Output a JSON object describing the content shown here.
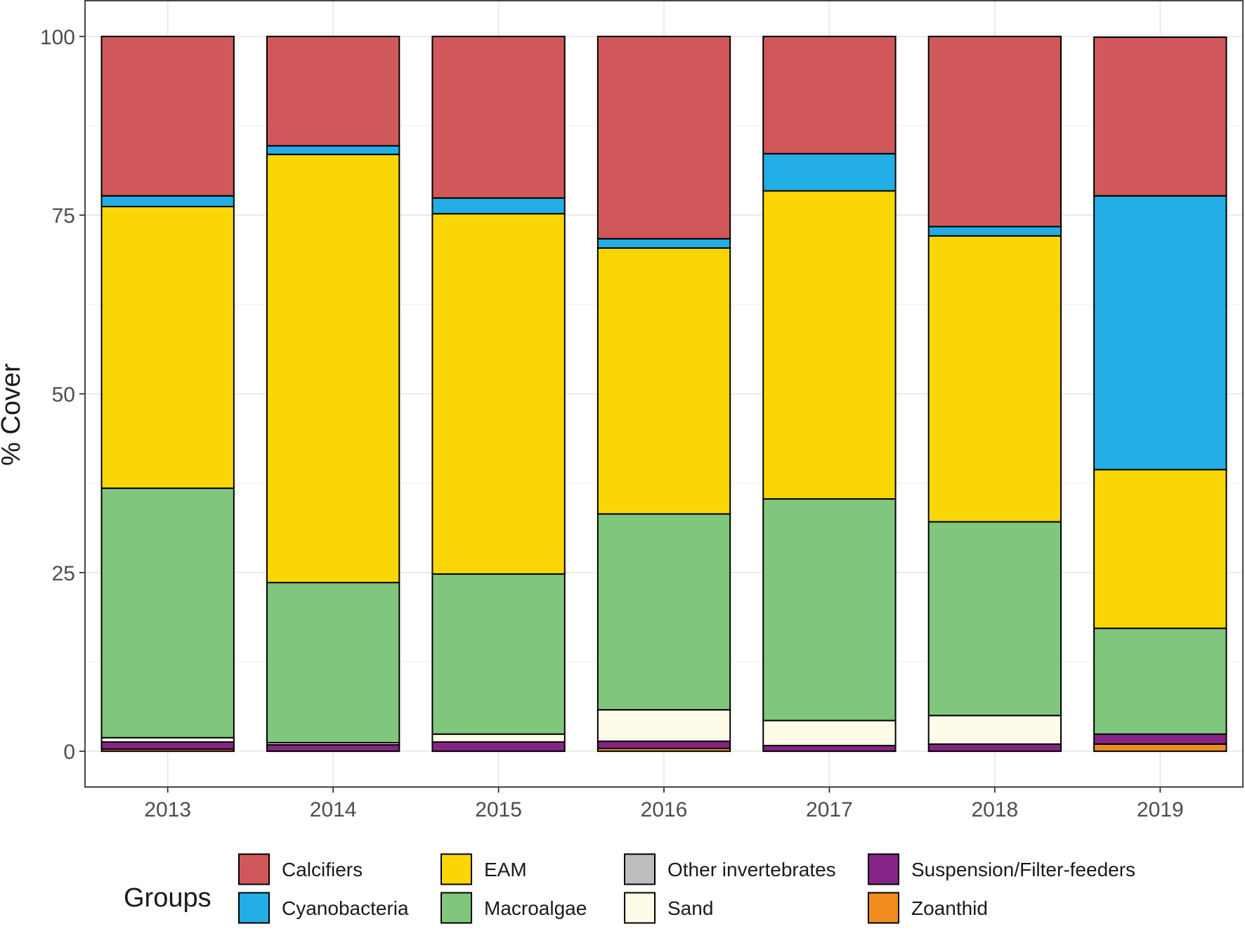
{
  "chart_data": {
    "type": "bar",
    "stacked": true,
    "title": "",
    "xlabel": "",
    "ylabel": "% Cover",
    "ylim": [
      -5,
      105
    ],
    "yticks": [
      0,
      25,
      50,
      75,
      100
    ],
    "grid": true,
    "legend_title": "Groups",
    "legend_position": "bottom",
    "categories": [
      "2013",
      "2014",
      "2015",
      "2016",
      "2017",
      "2018",
      "2019"
    ],
    "stack_order": [
      "Zoanthid",
      "Suspension/Filter-feeders",
      "Other invertebrates",
      "Sand",
      "Macroalgae",
      "EAM",
      "Cyanobacteria",
      "Calcifiers"
    ],
    "legend_order": [
      "Calcifiers",
      "Cyanobacteria",
      "EAM",
      "Macroalgae",
      "Other invertebrates",
      "Sand",
      "Suspension/Filter-feeders",
      "Zoanthid"
    ],
    "series": [
      {
        "name": "Calcifiers",
        "color": "#d1585a",
        "values": [
          22.3,
          15.3,
          22.6,
          28.3,
          16.4,
          26.6,
          22.2
        ]
      },
      {
        "name": "Cyanobacteria",
        "color": "#22aee4",
        "values": [
          1.5,
          1.2,
          2.2,
          1.3,
          5.2,
          1.3,
          38.3
        ]
      },
      {
        "name": "EAM",
        "color": "#fbd605",
        "values": [
          39.4,
          59.9,
          50.4,
          37.2,
          43.1,
          40.0,
          22.2
        ]
      },
      {
        "name": "Macroalgae",
        "color": "#81c67d",
        "values": [
          34.9,
          22.4,
          22.4,
          27.4,
          31.0,
          27.1,
          14.8
        ]
      },
      {
        "name": "Other invertebrates",
        "color": "#bdbdbd",
        "values": [
          0,
          0,
          0,
          0,
          0,
          0,
          0
        ]
      },
      {
        "name": "Sand",
        "color": "#fefbe9",
        "values": [
          0.6,
          0.3,
          1.1,
          4.4,
          3.5,
          4.0,
          0
        ]
      },
      {
        "name": "Suspension/Filter-feeders",
        "color": "#862386",
        "values": [
          1.0,
          0.9,
          1.3,
          1.0,
          0.8,
          1.0,
          1.4
        ]
      },
      {
        "name": "Zoanthid",
        "color": "#f28c1f",
        "values": [
          0.3,
          0,
          0,
          0.4,
          0,
          0,
          1.0
        ]
      }
    ]
  }
}
